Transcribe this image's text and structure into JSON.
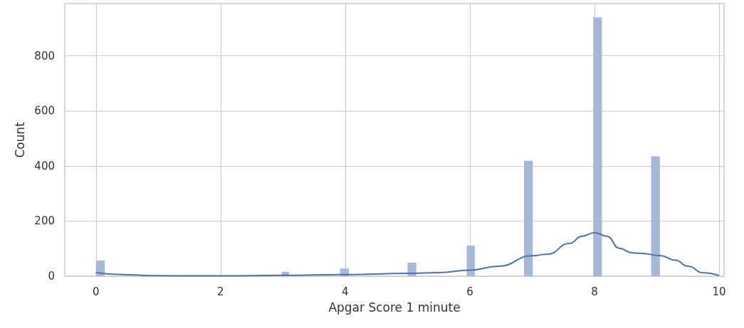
{
  "chart_data": {
    "type": "histogram",
    "xlabel": "Apgar Score 1 minute",
    "ylabel": "Count",
    "color": "#a5b8d7",
    "bins": [
      0,
      0.14,
      2.98,
      3.1,
      3.92,
      4.06,
      5,
      5.14,
      5.95,
      6.08,
      6.87,
      7.01,
      7.98,
      8.12,
      8.91,
      9.05
    ],
    "values": [
      57,
      0,
      16,
      0,
      28,
      0,
      49,
      0,
      111,
      0,
      419,
      0,
      940,
      0,
      435
    ],
    "series": [
      {
        "type": "line",
        "color": "#4c72b0",
        "x": [
          0,
          0.5,
          1,
          1.5,
          2,
          3,
          4,
          5,
          5.5,
          6,
          6.46,
          7,
          7.25,
          7.6,
          7.8,
          8,
          8.2,
          8.4,
          8.6,
          8.74,
          9.05,
          9.3,
          9.5,
          9.75,
          10
        ],
        "values": [
          13,
          5,
          2,
          1,
          1,
          3,
          6,
          10,
          13,
          22,
          36,
          74,
          80,
          119,
          145,
          158,
          145,
          101,
          85,
          83,
          75,
          58,
          36,
          12,
          2
        ]
      }
    ],
    "xlim": [
      -0.5,
      10.08
    ],
    "xticks": [
      0,
      2,
      4,
      6,
      8,
      10
    ],
    "ylim": [
      0,
      990
    ],
    "yticks": [
      0,
      200,
      400,
      600,
      800
    ],
    "grid": true
  }
}
